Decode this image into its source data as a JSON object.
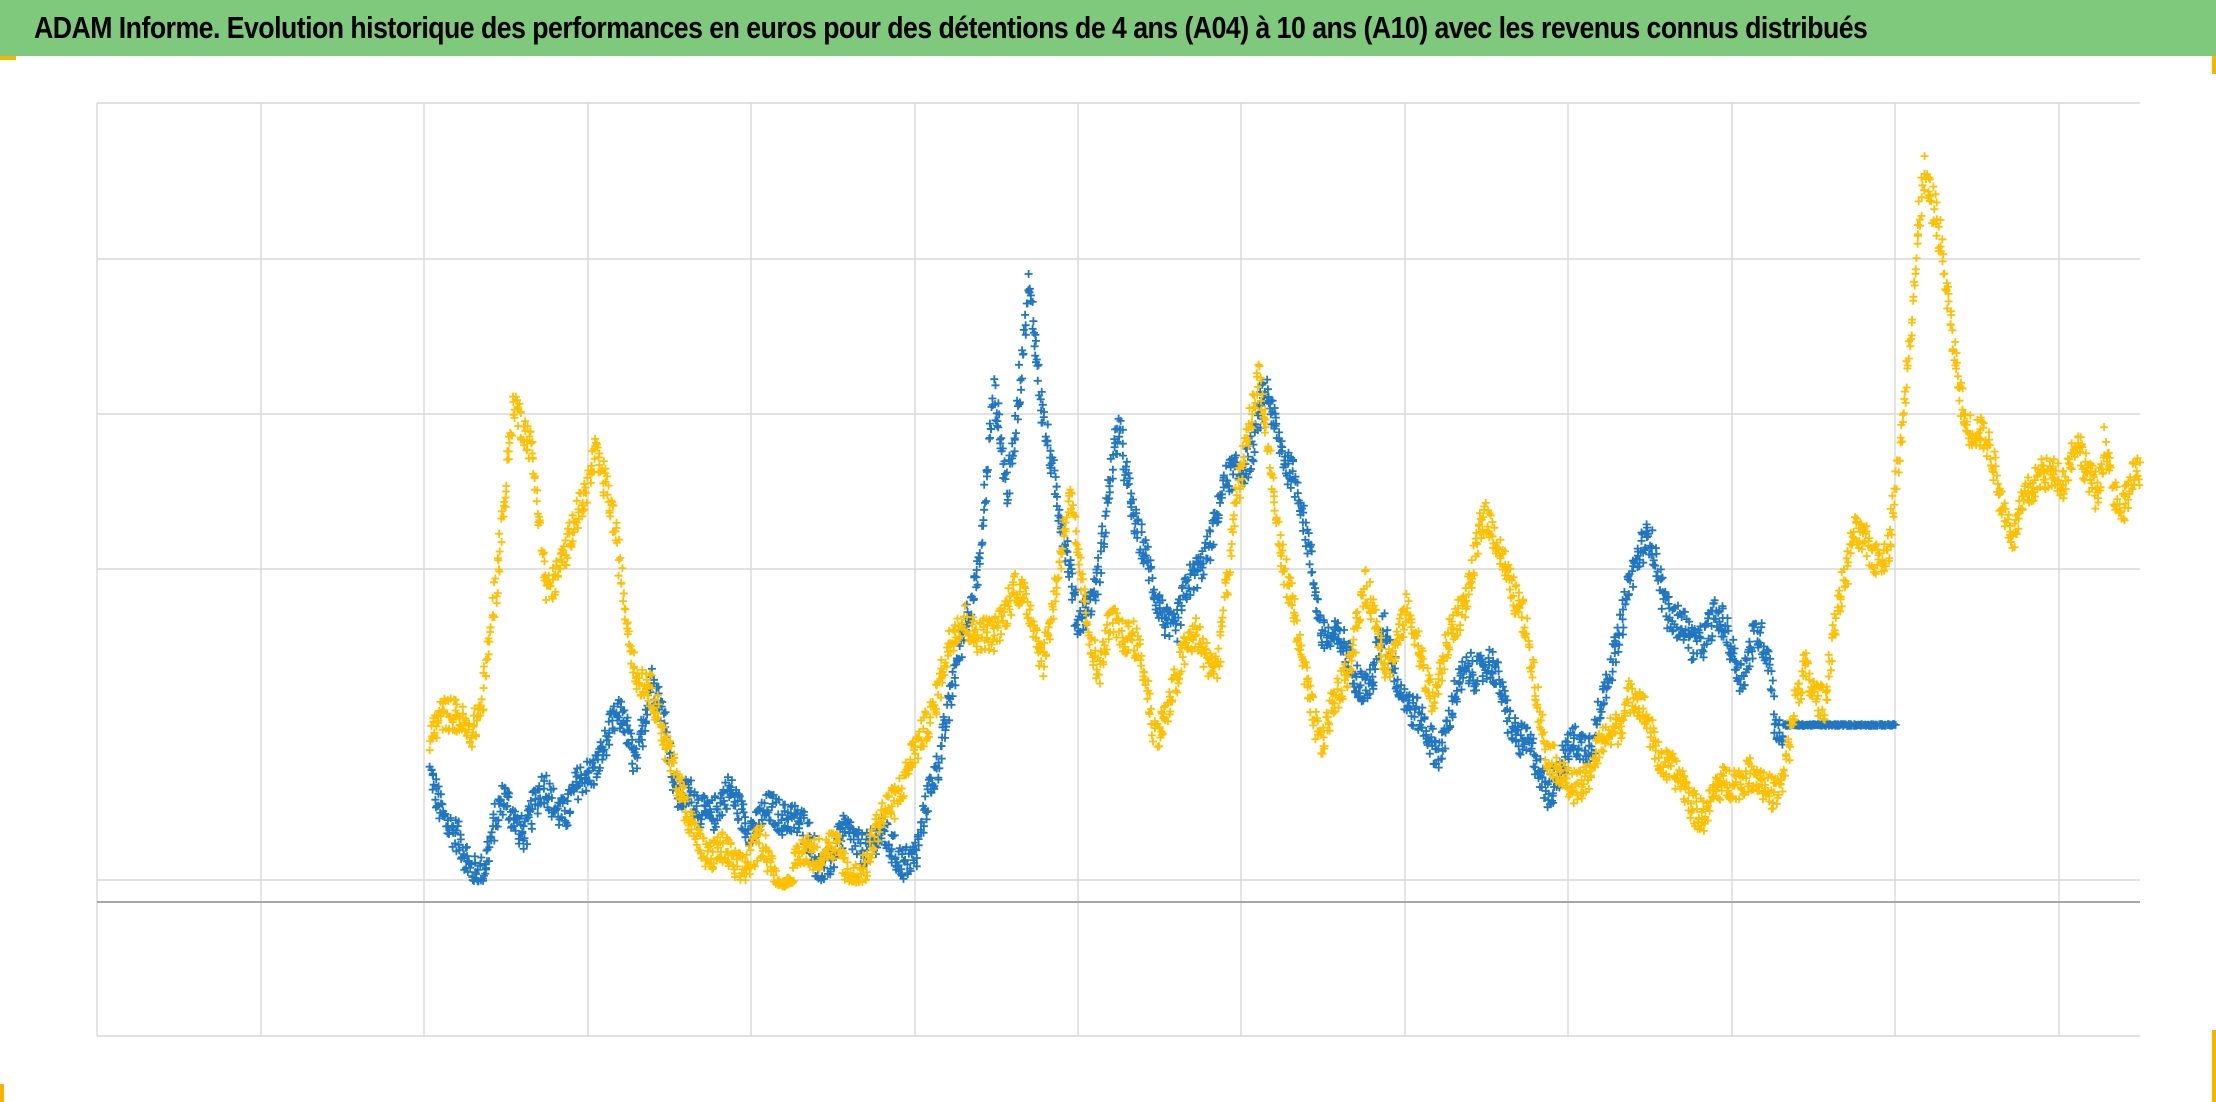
{
  "title": "ADAM Informe. Evolution historique des performances en euros pour des détentions de 4 ans (A04) à 10 ans (A10) avec les revenus connus distribués",
  "colors": {
    "title_band": "#7ec97b",
    "series_a": "#1f77c4",
    "series_b": "#ffc000",
    "grid": "#d9d9d9",
    "zero_line": "#a6a6a6",
    "corner_marks": "#f5b400"
  },
  "chart_data": {
    "type": "scatter",
    "marker": "plus",
    "title": "ADAM Informe. Evolution historique des performances en euros pour des détentions de 4 ans (A04) à 10 ans (A10) avec les revenus connus distribués",
    "xlabel": "",
    "ylabel": "",
    "grid": true,
    "legend": "none",
    "tick_labels_shown": false,
    "xlim": [
      0,
      12.5
    ],
    "ylim": [
      -0.6,
      2.4
    ],
    "grid_x_step": 1,
    "grid_y": [
      -0.6,
      -0.4,
      0.0,
      0.5,
      1.0,
      1.5,
      2.0
    ],
    "zero_line": -0.07,
    "series": [
      {
        "color": "#1f77c4",
        "anchors": [
          [
            2.02,
            0.33
          ],
          [
            2.15,
            0.2
          ],
          [
            2.3,
            0.02
          ],
          [
            2.4,
            0.06
          ],
          [
            2.55,
            0.25
          ],
          [
            2.7,
            0.17
          ],
          [
            2.85,
            0.29
          ],
          [
            3.0,
            0.22
          ],
          [
            3.1,
            0.3
          ],
          [
            3.25,
            0.43
          ],
          [
            3.4,
            0.52
          ],
          [
            3.5,
            0.4
          ],
          [
            3.6,
            0.62
          ],
          [
            3.7,
            0.52
          ],
          [
            3.8,
            0.28
          ],
          [
            3.95,
            0.22
          ],
          [
            4.15,
            0.26
          ],
          [
            4.35,
            0.18
          ],
          [
            4.6,
            0.23
          ],
          [
            4.8,
            0.05
          ],
          [
            5.0,
            0.13
          ],
          [
            5.25,
            0.12
          ],
          [
            5.5,
            0.06
          ],
          [
            5.6,
            0.3
          ],
          [
            5.8,
            0.7
          ],
          [
            5.95,
            1.05
          ],
          [
            6.05,
            1.55
          ],
          [
            6.15,
            1.25
          ],
          [
            6.3,
            1.9
          ],
          [
            6.4,
            1.5
          ],
          [
            6.5,
            1.28
          ],
          [
            6.65,
            0.8
          ],
          [
            6.8,
            1.0
          ],
          [
            6.95,
            1.45
          ],
          [
            7.05,
            1.2
          ],
          [
            7.2,
            0.9
          ],
          [
            7.35,
            0.82
          ],
          [
            7.5,
            0.98
          ],
          [
            7.7,
            1.25
          ],
          [
            7.9,
            1.4
          ],
          [
            8.0,
            1.55
          ],
          [
            8.2,
            1.3
          ],
          [
            8.4,
            0.82
          ],
          [
            8.6,
            0.7
          ],
          [
            8.75,
            0.62
          ],
          [
            8.85,
            0.8
          ],
          [
            9.05,
            0.52
          ],
          [
            9.25,
            0.43
          ],
          [
            9.45,
            0.7
          ],
          [
            9.6,
            0.68
          ],
          [
            9.8,
            0.48
          ],
          [
            10.0,
            0.3
          ],
          [
            10.2,
            0.42
          ],
          [
            10.35,
            0.48
          ],
          [
            10.5,
            0.72
          ],
          [
            10.6,
            1.0
          ],
          [
            10.75,
            1.08
          ],
          [
            10.9,
            0.85
          ],
          [
            11.05,
            0.75
          ],
          [
            11.2,
            0.85
          ],
          [
            11.4,
            0.68
          ],
          [
            11.5,
            0.78
          ],
          [
            11.6,
            0.7
          ],
          [
            11.65,
            0.5
          ],
          [
            11.7,
            0.5
          ],
          [
            12.5,
            0.5
          ]
        ]
      },
      {
        "color": "#ffc000",
        "anchors": [
          [
            2.02,
            0.48
          ],
          [
            2.1,
            0.56
          ],
          [
            2.2,
            0.5
          ],
          [
            2.3,
            0.48
          ],
          [
            2.4,
            0.6
          ],
          [
            2.5,
            0.95
          ],
          [
            2.62,
            1.58
          ],
          [
            2.75,
            1.35
          ],
          [
            2.85,
            0.95
          ],
          [
            3.0,
            1.05
          ],
          [
            3.1,
            1.2
          ],
          [
            3.2,
            1.4
          ],
          [
            3.35,
            1.1
          ],
          [
            3.5,
            0.65
          ],
          [
            3.65,
            0.55
          ],
          [
            3.75,
            0.4
          ],
          [
            3.85,
            0.2
          ],
          [
            4.0,
            0.1
          ],
          [
            4.2,
            0.05
          ],
          [
            4.4,
            0.1
          ],
          [
            4.55,
            -0.05
          ],
          [
            4.7,
            0.08
          ],
          [
            4.85,
            0.13
          ],
          [
            5.0,
            0.02
          ],
          [
            5.15,
            0.05
          ],
          [
            5.3,
            0.25
          ],
          [
            5.5,
            0.4
          ],
          [
            5.7,
            0.7
          ],
          [
            5.85,
            0.85
          ],
          [
            6.05,
            0.75
          ],
          [
            6.2,
            0.98
          ],
          [
            6.4,
            0.72
          ],
          [
            6.6,
            1.2
          ],
          [
            6.8,
            0.65
          ],
          [
            6.9,
            0.82
          ],
          [
            7.05,
            0.8
          ],
          [
            7.2,
            0.48
          ],
          [
            7.35,
            0.62
          ],
          [
            7.5,
            0.82
          ],
          [
            7.65,
            0.65
          ],
          [
            7.8,
            1.3
          ],
          [
            7.95,
            1.6
          ],
          [
            8.1,
            1.1
          ],
          [
            8.25,
            0.7
          ],
          [
            8.4,
            0.45
          ],
          [
            8.55,
            0.62
          ],
          [
            8.7,
            0.95
          ],
          [
            8.85,
            0.7
          ],
          [
            9.0,
            0.85
          ],
          [
            9.2,
            0.6
          ],
          [
            9.4,
            0.88
          ],
          [
            9.55,
            1.15
          ],
          [
            9.7,
            1.05
          ],
          [
            9.85,
            0.8
          ],
          [
            10.0,
            0.45
          ],
          [
            10.15,
            0.28
          ],
          [
            10.3,
            0.35
          ],
          [
            10.45,
            0.45
          ],
          [
            10.6,
            0.6
          ],
          [
            10.75,
            0.48
          ],
          [
            10.95,
            0.3
          ],
          [
            11.15,
            0.22
          ],
          [
            11.35,
            0.35
          ],
          [
            11.55,
            0.3
          ],
          [
            11.7,
            0.32
          ],
          [
            11.85,
            0.7
          ],
          [
            12.0,
            0.55
          ],
          [
            12.05,
            0.75
          ],
          [
            12.2,
            1.15
          ],
          [
            12.35,
            1.0
          ],
          [
            12.45,
            1.1
          ],
          [
            12.55,
            1.45
          ],
          [
            12.7,
            2.25
          ],
          [
            12.8,
            2.1
          ],
          [
            12.9,
            1.75
          ],
          [
            13.0,
            1.5
          ],
          [
            13.2,
            1.35
          ],
          [
            13.35,
            1.1
          ],
          [
            13.55,
            1.35
          ],
          [
            13.7,
            1.25
          ],
          [
            13.8,
            1.45
          ],
          [
            13.95,
            1.2
          ],
          [
            14.0,
            1.4
          ],
          [
            14.1,
            1.2
          ],
          [
            14.25,
            1.3
          ]
        ]
      }
    ]
  }
}
